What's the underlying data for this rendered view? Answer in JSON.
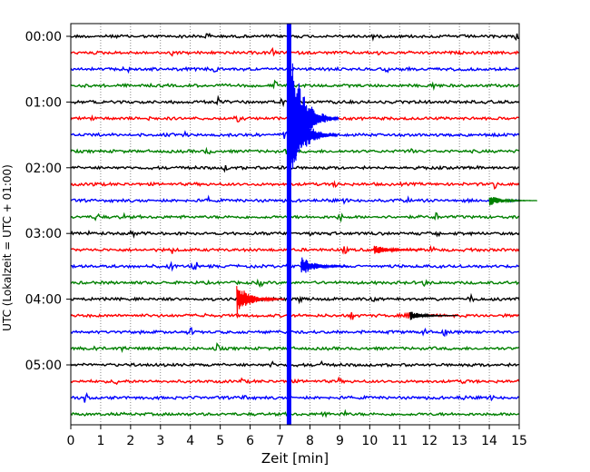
{
  "chart_data": {
    "type": "line",
    "title": "",
    "xlabel": "Zeit  [min]",
    "ylabel": "UTC (Lokalzeit = UTC + 01:00)",
    "xlim": [
      0,
      15
    ],
    "xticks": [
      0,
      1,
      2,
      3,
      4,
      5,
      6,
      7,
      8,
      9,
      10,
      11,
      12,
      13,
      14,
      15
    ],
    "xtick_labels": [
      "0",
      "1",
      "2",
      "3",
      "4",
      "5",
      "6",
      "7",
      "8",
      "9",
      "10",
      "11",
      "12",
      "13",
      "14",
      "15"
    ],
    "yticks": [
      {
        "label": "00:00",
        "trace": 0
      },
      {
        "label": "01:00",
        "trace": 4
      },
      {
        "label": "02:00",
        "trace": 8
      },
      {
        "label": "03:00",
        "trace": 12
      },
      {
        "label": "04:00",
        "trace": 16
      },
      {
        "label": "05:00",
        "trace": 20
      }
    ],
    "grid": "vertical-dotted",
    "legend": "none",
    "trace_interval_min": 15,
    "trace_count": 24,
    "trace_colors": [
      "#000000",
      "#ff0000",
      "#0000ff",
      "#008000"
    ],
    "events": [
      {
        "trace": 0,
        "t": 7.3,
        "amp": 10,
        "color": "#0000ff",
        "note": "large event, saturated across traces"
      },
      {
        "trace": 5,
        "t": 7.35,
        "amp": 8,
        "color": "#0000ff"
      },
      {
        "trace": 6,
        "t": 7.3,
        "amp": 6,
        "color": "#0000ff"
      },
      {
        "trace": 16,
        "t": 5.55,
        "amp": 1.8,
        "color": "#ff0000"
      },
      {
        "trace": 14,
        "t": 7.7,
        "amp": 1.2,
        "color": "#0000ff"
      },
      {
        "trace": 13,
        "t": 10.15,
        "amp": 0.6,
        "color": "#ff0000"
      },
      {
        "trace": 17,
        "t": 11.35,
        "amp": 0.5,
        "color": "#000000"
      },
      {
        "trace": 10,
        "t": 14.0,
        "amp": 0.6,
        "color": "#008000"
      }
    ]
  }
}
